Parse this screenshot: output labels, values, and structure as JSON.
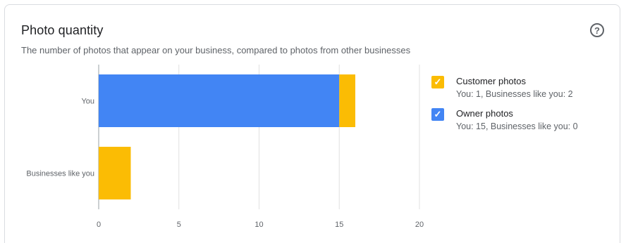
{
  "header": {
    "title": "Photo quantity",
    "subtitle": "The number of photos that appear on your business, compared to photos from other businesses",
    "help_icon": "help-circle-icon",
    "help_glyph": "?"
  },
  "colors": {
    "customer": "#fbbc04",
    "owner": "#4285f4",
    "grid": "#e0e0e0",
    "axis_text": "#5f6368"
  },
  "legend": [
    {
      "label": "Customer photos",
      "detail": "You: 1, Businesses like you: 2",
      "color": "#fbbc04",
      "checked": true,
      "check_glyph": "✓"
    },
    {
      "label": "Owner photos",
      "detail": "You: 15, Businesses like you: 0",
      "color": "#4285f4",
      "checked": true,
      "check_glyph": "✓"
    }
  ],
  "chart_data": {
    "type": "bar",
    "orientation": "horizontal",
    "stacked": true,
    "categories": [
      "You",
      "Businesses like you"
    ],
    "series": [
      {
        "name": "Owner photos",
        "values": [
          15,
          0
        ],
        "color": "#4285f4"
      },
      {
        "name": "Customer photos",
        "values": [
          1,
          2
        ],
        "color": "#fbbc04"
      }
    ],
    "xlim": [
      0,
      20
    ],
    "xticks": [
      0,
      5,
      10,
      15,
      20
    ],
    "grid": true,
    "legend_position": "right"
  }
}
